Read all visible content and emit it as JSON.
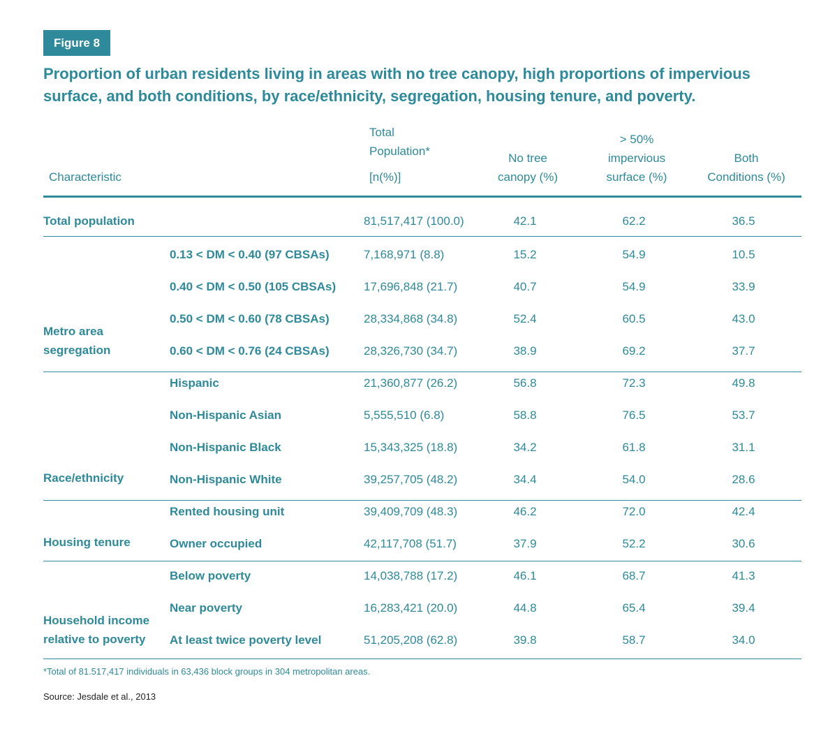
{
  "badge": "Figure 8",
  "title": "Proportion of urban residents living in areas with no tree canopy, high proportions of impervious surface, and both conditions, by race/ethnicity, segregation, housing tenure, and poverty.",
  "headers": {
    "characteristic": "Characteristic",
    "total_l1": "Total",
    "total_l2": "Population*",
    "total_l3": "[n(%)]",
    "notree_l1": "No tree",
    "notree_l2": "canopy (%)",
    "imp_l1": "> 50%",
    "imp_l2": "impervious",
    "imp_l3": "surface (%)",
    "both_l1": "Both",
    "both_l2": "Conditions (%)"
  },
  "total_row": {
    "label": "Total population",
    "total": "81,517,417 (100.0)",
    "notree": "42.1",
    "imp": "62.2",
    "both": "36.5"
  },
  "groups": {
    "segregation": {
      "l1": "Metro area",
      "l2": "segregation"
    },
    "race": {
      "l1": "Race/ethnicity"
    },
    "tenure": {
      "l1": "Housing tenure"
    },
    "income": {
      "l1": "Household income",
      "l2": "relative to poverty"
    }
  },
  "rows": [
    {
      "label": "0.13 < DM < 0.40 (97 CBSAs)",
      "total": "7,168,971 (8.8)",
      "notree": "15.2",
      "imp": "54.9",
      "both": "10.5"
    },
    {
      "label": "0.40 < DM < 0.50 (105 CBSAs)",
      "total": "17,696,848 (21.7)",
      "notree": "40.7",
      "imp": "54.9",
      "both": "33.9"
    },
    {
      "label": "0.50 < DM < 0.60 (78 CBSAs)",
      "total": "28,334,868 (34.8)",
      "notree": "52.4",
      "imp": "60.5",
      "both": "43.0"
    },
    {
      "label": "0.60 < DM < 0.76 (24 CBSAs)",
      "total": "28,326,730 (34.7)",
      "notree": "38.9",
      "imp": "69.2",
      "both": "37.7"
    },
    {
      "label": "Hispanic",
      "total": "21,360,877 (26.2)",
      "notree": "56.8",
      "imp": "72.3",
      "both": "49.8"
    },
    {
      "label": "Non-Hispanic Asian",
      "total": "5,555,510 (6.8)",
      "notree": "58.8",
      "imp": "76.5",
      "both": "53.7"
    },
    {
      "label": "Non-Hispanic Black",
      "total": "15,343,325 (18.8)",
      "notree": "34.2",
      "imp": "61.8",
      "both": "31.1"
    },
    {
      "label": "Non-Hispanic White",
      "total": "39,257,705 (48.2)",
      "notree": "34.4",
      "imp": "54.0",
      "both": "28.6"
    },
    {
      "label": "Rented housing unit",
      "total": "39,409,709 (48.3)",
      "notree": "46.2",
      "imp": "72.0",
      "both": "42.4"
    },
    {
      "label": "Owner occupied",
      "total": "42,117,708 (51.7)",
      "notree": "37.9",
      "imp": "52.2",
      "both": "30.6"
    },
    {
      "label": "Below poverty",
      "total": "14,038,788 (17.2)",
      "notree": "46.1",
      "imp": "68.7",
      "both": "41.3"
    },
    {
      "label": "Near poverty",
      "total": "16,283,421 (20.0)",
      "notree": "44.8",
      "imp": "65.4",
      "both": "39.4"
    },
    {
      "label": "At least twice poverty level",
      "total": "51,205,208 (62.8)",
      "notree": "39.8",
      "imp": "58.7",
      "both": "34.0"
    }
  ],
  "footnote": "*Total of 81.517,417 individuals in 63,436 block groups in 304 metropolitan areas.",
  "source": "Source: Jesdale et al., 2013",
  "colors": {
    "accent": "#2e8a9a"
  }
}
